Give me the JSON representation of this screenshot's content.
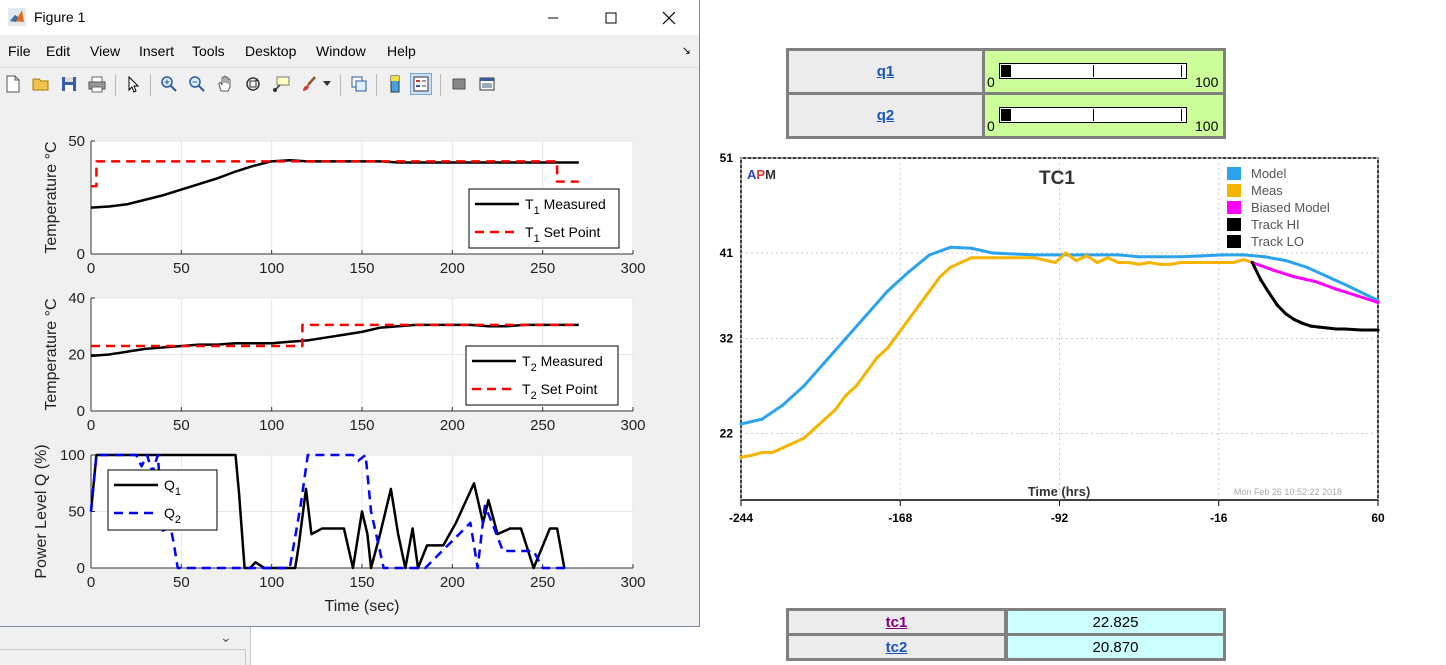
{
  "window": {
    "title": "Figure 1"
  },
  "menu": [
    "File",
    "Edit",
    "View",
    "Insert",
    "Tools",
    "Desktop",
    "Window",
    "Help"
  ],
  "toolbar_icons": [
    "new-figure-icon",
    "open-file-icon",
    "save-icon",
    "print-icon",
    "pointer-icon",
    "zoom-in-icon",
    "zoom-out-icon",
    "pan-icon",
    "rotate-icon",
    "data-cursor-icon",
    "brush-icon",
    "brush-dropdown-icon",
    "link-plot-icon",
    "colorbar-icon",
    "legend-icon",
    "hide-plot-tools-icon",
    "show-plot-tools-icon"
  ],
  "sliders": [
    {
      "label": "q1",
      "min": "0",
      "max": "100",
      "value": 0
    },
    {
      "label": "q2",
      "min": "0",
      "max": "100",
      "value": 0
    }
  ],
  "values": [
    {
      "label": "tc1",
      "value": "22.825",
      "color": "#800080"
    },
    {
      "label": "tc2",
      "value": "20.870",
      "color": "#1a55b8"
    }
  ],
  "chart_data": [
    {
      "type": "line",
      "title": "",
      "xlabel": "",
      "ylabel": "Temperature °C",
      "xlim": [
        0,
        300
      ],
      "ylim": [
        0,
        50
      ],
      "xticks": [
        "0",
        "50",
        "100",
        "150",
        "200",
        "250",
        "300"
      ],
      "yticks": [
        "0",
        "50"
      ],
      "grid": true,
      "legend_position": "right",
      "series": [
        {
          "name": "T1 Measured",
          "color": "#000000",
          "style": "solid",
          "x": [
            0,
            10,
            20,
            30,
            40,
            50,
            60,
            70,
            80,
            90,
            100,
            110,
            120,
            130,
            140,
            150,
            160,
            170,
            180,
            190,
            200,
            210,
            220,
            230,
            240,
            250,
            260,
            270
          ],
          "y": [
            20.5,
            21,
            22,
            24,
            26,
            28.5,
            31,
            33.5,
            36.5,
            39,
            41,
            41.5,
            41,
            41,
            41,
            41,
            41,
            40.5,
            40.5,
            40.5,
            40.5,
            40.5,
            40.5,
            40.5,
            40.5,
            40.5,
            40.5,
            40.5
          ]
        },
        {
          "name": "T1 Set Point",
          "color": "#ff0000",
          "style": "dashed",
          "x": [
            0,
            3,
            3,
            258,
            258,
            270
          ],
          "y": [
            30,
            30,
            41,
            41,
            32,
            32
          ]
        }
      ]
    },
    {
      "type": "line",
      "title": "",
      "xlabel": "",
      "ylabel": "Temperature °C",
      "xlim": [
        0,
        300
      ],
      "ylim": [
        0,
        40
      ],
      "xticks": [
        "0",
        "50",
        "100",
        "150",
        "200",
        "250",
        "300"
      ],
      "yticks": [
        "0",
        "20",
        "40"
      ],
      "grid": true,
      "legend_position": "right",
      "series": [
        {
          "name": "T2 Measured",
          "color": "#000000",
          "style": "solid",
          "x": [
            0,
            10,
            20,
            30,
            40,
            50,
            60,
            70,
            80,
            90,
            100,
            110,
            120,
            130,
            140,
            150,
            160,
            170,
            180,
            190,
            200,
            210,
            220,
            230,
            240,
            250,
            260,
            270
          ],
          "y": [
            19.5,
            20,
            21,
            22,
            22.5,
            23,
            23.5,
            23.5,
            24,
            24,
            24,
            24.5,
            25,
            26,
            27,
            28,
            29.5,
            30,
            30.5,
            30.5,
            30.5,
            30.5,
            30,
            30,
            30.5,
            30.5,
            30.5,
            30.5
          ]
        },
        {
          "name": "T2 Set Point",
          "color": "#ff0000",
          "style": "dashed",
          "x": [
            0,
            117,
            117,
            270
          ],
          "y": [
            23,
            23,
            30.5,
            30.5
          ]
        }
      ]
    },
    {
      "type": "line",
      "title": "",
      "xlabel": "Time (sec)",
      "ylabel": "Power Level Q (%)",
      "xlim": [
        0,
        300
      ],
      "ylim": [
        0,
        100
      ],
      "xticks": [
        "0",
        "50",
        "100",
        "150",
        "200",
        "250",
        "300"
      ],
      "yticks": [
        "0",
        "50",
        "100"
      ],
      "grid": true,
      "legend_position": "top-left",
      "series": [
        {
          "name": "Q1",
          "color": "#000000",
          "style": "solid",
          "x": [
            0,
            3,
            80,
            82,
            85,
            88,
            91,
            96,
            110,
            113,
            115,
            119,
            122,
            128,
            140,
            145,
            150,
            153,
            155,
            160,
            166,
            170,
            174,
            178,
            181,
            186,
            195,
            202,
            212,
            217,
            220,
            225,
            232,
            238,
            245,
            254,
            258,
            262
          ],
          "y": [
            50,
            100,
            100,
            65,
            0,
            0,
            5,
            0,
            0,
            0,
            20,
            70,
            30,
            35,
            35,
            0,
            50,
            30,
            0,
            30,
            70,
            30,
            0,
            35,
            0,
            20,
            20,
            40,
            75,
            40,
            60,
            30,
            35,
            35,
            0,
            35,
            35,
            0
          ]
        },
        {
          "name": "Q2",
          "color": "#0000ff",
          "style": "dashed",
          "x": [
            0,
            3,
            25,
            28,
            31,
            34,
            37,
            40,
            43,
            46,
            48,
            50,
            110,
            116,
            120,
            145,
            148,
            152,
            155,
            162,
            168,
            180,
            185,
            210,
            214,
            218,
            222,
            228,
            245,
            250,
            255,
            265
          ],
          "y": [
            50,
            100,
            100,
            90,
            100,
            85,
            100,
            30,
            45,
            20,
            0,
            0,
            0,
            55,
            100,
            100,
            95,
            100,
            50,
            0,
            0,
            0,
            0,
            40,
            0,
            55,
            40,
            15,
            15,
            0,
            0,
            0
          ]
        }
      ]
    },
    {
      "type": "line",
      "title": "TC1",
      "brand": {
        "a": "A",
        "p": "P",
        "m": "M"
      },
      "xlabel": "Time (hrs)",
      "ylabel": "",
      "timestamp": "Mon Feb 26 10:52:22 2018",
      "xlim": [
        -244,
        60
      ],
      "ylim": [
        15,
        51
      ],
      "xticks": [
        "-244",
        "-168",
        "-92",
        "-16",
        "60"
      ],
      "yticks": [
        "22",
        "32",
        "41",
        "51"
      ],
      "grid": true,
      "legend_position": "top-right",
      "series": [
        {
          "name": "Model",
          "color": "#2aa3ee",
          "x": [
            -244,
            -234,
            -224,
            -214,
            -204,
            -194,
            -184,
            -174,
            -164,
            -154,
            -144,
            -134,
            -124,
            -114,
            -104,
            -94,
            -84,
            -74,
            -64,
            -54,
            -44,
            -34,
            -24,
            -14,
            -4,
            6,
            16,
            26,
            36,
            46,
            60
          ],
          "y": [
            23,
            23.5,
            25,
            27,
            29.5,
            32,
            34.5,
            37,
            39,
            40.8,
            41.6,
            41.5,
            41,
            40.9,
            40.8,
            40.8,
            40.8,
            40.8,
            40.8,
            40.6,
            40.6,
            40.6,
            40.7,
            40.8,
            40.8,
            40.6,
            40.2,
            39.5,
            38.5,
            37.5,
            36
          ]
        },
        {
          "name": "Meas",
          "color": "#f4b400",
          "x": [
            -244,
            -239,
            -234,
            -229,
            -224,
            -219,
            -214,
            -209,
            -204,
            -199,
            -194,
            -189,
            -184,
            -179,
            -174,
            -169,
            -164,
            -159,
            -154,
            -149,
            -144,
            -139,
            -134,
            -124,
            -114,
            -104,
            -94,
            -89,
            -84,
            -79,
            -74,
            -69,
            -64,
            -59,
            -54,
            -49,
            -44,
            -39,
            -34,
            -24,
            -14,
            -9,
            -4,
            0
          ],
          "y": [
            19.5,
            19.7,
            20,
            20,
            20.5,
            21,
            21.5,
            22.5,
            23.5,
            24.5,
            26,
            27,
            28.5,
            30,
            31,
            32.5,
            34,
            35.5,
            37,
            38.5,
            39.5,
            40,
            40.5,
            40.5,
            40.5,
            40.5,
            40,
            41,
            40.2,
            40.7,
            40,
            40.5,
            40,
            40,
            39.8,
            40,
            39.8,
            39.8,
            40,
            40,
            40,
            40,
            40.3,
            40
          ]
        },
        {
          "name": "Biased Model",
          "color": "#ff00ff",
          "x": [
            0,
            10,
            20,
            30,
            40,
            50,
            60
          ],
          "y": [
            40,
            39.2,
            38.5,
            38,
            37.2,
            36.5,
            35.8
          ]
        },
        {
          "name": "Track HI",
          "color": "#000000",
          "x": [
            0,
            4,
            8,
            12,
            16,
            20,
            24,
            28,
            32,
            36,
            40,
            44,
            48,
            52,
            56,
            60
          ],
          "y": [
            40,
            38.2,
            36.8,
            35.5,
            34.6,
            34,
            33.6,
            33.3,
            33.2,
            33.1,
            33,
            33,
            32.95,
            32.9,
            32.9,
            32.9
          ]
        },
        {
          "name": "Track LO",
          "color": "#000000",
          "x": [],
          "y": []
        }
      ]
    }
  ]
}
